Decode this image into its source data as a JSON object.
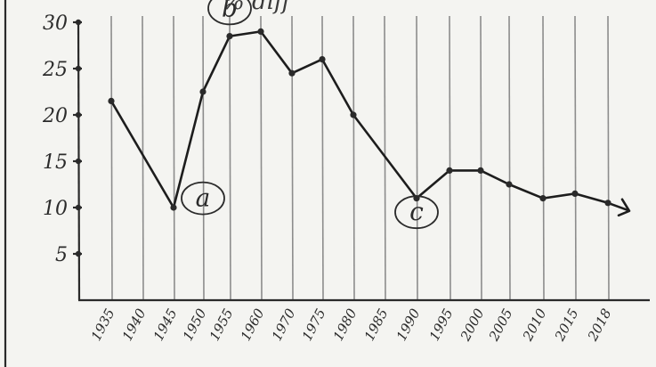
{
  "page": {
    "top_scrawl": "% diff"
  },
  "chart_data": {
    "type": "line",
    "title": "",
    "xlabel": "",
    "ylabel": "",
    "ylim": [
      0,
      30
    ],
    "yticks": [
      "5",
      "10",
      "15",
      "20",
      "25",
      "30"
    ],
    "x_labels": [
      "1935",
      "1940",
      "1945",
      "1950",
      "1955",
      "1960",
      "1970",
      "1975",
      "1980",
      "1985",
      "1990",
      "1995",
      "2000",
      "2005",
      "2010",
      "2015",
      "2018"
    ],
    "series": [
      {
        "points": [
          {
            "x": "1935",
            "y": 21.5
          },
          {
            "x": "1945",
            "y": 10
          },
          {
            "x": "1950",
            "y": 22.5
          },
          {
            "x": "1955",
            "y": 28.5
          },
          {
            "x": "1960",
            "y": 29
          },
          {
            "x": "1970",
            "y": 24.5
          },
          {
            "x": "1975",
            "y": 26
          },
          {
            "x": "1980",
            "y": 20
          },
          {
            "x": "1990",
            "y": 11
          },
          {
            "x": "1995",
            "y": 14
          },
          {
            "x": "2000",
            "y": 14
          },
          {
            "x": "2005",
            "y": 12.5
          },
          {
            "x": "2010",
            "y": 11
          },
          {
            "x": "2015",
            "y": 11.5
          },
          {
            "x": "2018",
            "y": 10.5
          }
        ]
      }
    ],
    "annotations": [
      {
        "label": "b",
        "x": "1955",
        "y": 31.5
      },
      {
        "label": "a",
        "x": "1950",
        "y": 11
      },
      {
        "label": "c",
        "x": "1990",
        "y": 9.5
      }
    ],
    "grid": "vertical"
  }
}
